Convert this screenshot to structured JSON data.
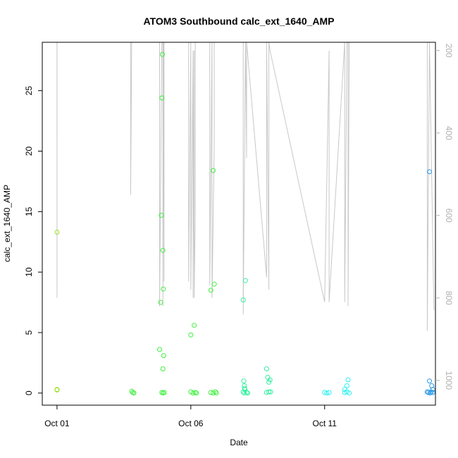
{
  "chart_data": {
    "type": "scatter",
    "title": "ATOM3 Southbound calc_ext_1640_AMP",
    "xlabel": "Date",
    "ylabel": "calc_ext_1640_AMP",
    "x_axis": {
      "type": "date",
      "range": [
        "2014-10-00",
        "2014-10-15"
      ],
      "ticks": [
        {
          "value": "2014-10-01",
          "label": "Oct 01"
        },
        {
          "value": "2014-10-06",
          "label": "Oct 06"
        },
        {
          "value": "2014-10-11",
          "label": "Oct 11"
        }
      ]
    },
    "y_axis": {
      "range": [
        -1,
        29
      ],
      "ticks": [
        0,
        5,
        10,
        15,
        20,
        25
      ]
    },
    "y2_axis": {
      "reversed": true,
      "range": [
        1060,
        180
      ],
      "ticks": [
        200,
        400,
        600,
        800,
        1000
      ],
      "color": "#b0b0b0"
    },
    "points": [
      {
        "x": "2014-10-01T00:00",
        "y": 13.3,
        "color": "#9be22b"
      },
      {
        "x": "2014-10-01T00:00",
        "y": 0.3,
        "color": "#9be22b"
      },
      {
        "x": "2014-10-01T00:02",
        "y": 0.25,
        "color": "#9be22b"
      },
      {
        "x": "2014-10-03T19:00",
        "y": 0.15,
        "color": "#3ff03f"
      },
      {
        "x": "2014-10-03T20:00",
        "y": 0.05,
        "color": "#3ff03f"
      },
      {
        "x": "2014-10-03T21:00",
        "y": 0.0,
        "color": "#3ff03f"
      },
      {
        "x": "2014-10-04T20:00",
        "y": 3.6,
        "color": "#3ff03f"
      },
      {
        "x": "2014-10-04T21:00",
        "y": 7.5,
        "color": "#3ff03f"
      },
      {
        "x": "2014-10-04T21:30",
        "y": 14.7,
        "color": "#3ff03f"
      },
      {
        "x": "2014-10-04T22:00",
        "y": 24.4,
        "color": "#3ff03f"
      },
      {
        "x": "2014-10-04T22:30",
        "y": 28.0,
        "color": "#3ff03f"
      },
      {
        "x": "2014-10-04T23:00",
        "y": 11.8,
        "color": "#3ff03f"
      },
      {
        "x": "2014-10-04T23:20",
        "y": 8.6,
        "color": "#3ff03f"
      },
      {
        "x": "2014-10-04T23:40",
        "y": 3.1,
        "color": "#3ff03f"
      },
      {
        "x": "2014-10-04T23:00",
        "y": 2.0,
        "color": "#3ff03f"
      },
      {
        "x": "2014-10-04T22:00",
        "y": 0.05,
        "color": "#3ff03f"
      },
      {
        "x": "2014-10-04T23:10",
        "y": 0.0,
        "color": "#3ff03f"
      },
      {
        "x": "2014-10-05T00:10",
        "y": 0.05,
        "color": "#3ff03f"
      },
      {
        "x": "2014-10-06T00:00",
        "y": 4.8,
        "color": "#3ff03f"
      },
      {
        "x": "2014-10-06T03:00",
        "y": 5.6,
        "color": "#3ff03f"
      },
      {
        "x": "2014-10-06T00:00",
        "y": 0.1,
        "color": "#3ff03f"
      },
      {
        "x": "2014-10-06T02:00",
        "y": 0.0,
        "color": "#3ff03f"
      },
      {
        "x": "2014-10-06T04:00",
        "y": 0.05,
        "color": "#3ff03f"
      },
      {
        "x": "2014-10-06T05:00",
        "y": 0.0,
        "color": "#3ff03f"
      },
      {
        "x": "2014-10-06T18:00",
        "y": 8.5,
        "color": "#3ff03f"
      },
      {
        "x": "2014-10-06T20:00",
        "y": 18.4,
        "color": "#3ff03f"
      },
      {
        "x": "2014-10-06T21:00",
        "y": 9.0,
        "color": "#3ff03f"
      },
      {
        "x": "2014-10-06T18:00",
        "y": 0.05,
        "color": "#3ff03f"
      },
      {
        "x": "2014-10-06T20:00",
        "y": 0.0,
        "color": "#3ff03f"
      },
      {
        "x": "2014-10-06T22:00",
        "y": 0.1,
        "color": "#3ff03f"
      },
      {
        "x": "2014-10-06T23:00",
        "y": 0.0,
        "color": "#3ff03f"
      },
      {
        "x": "2014-10-07T23:00",
        "y": 7.7,
        "color": "#33efa0"
      },
      {
        "x": "2014-10-08T01:00",
        "y": 9.3,
        "color": "#33efa0"
      },
      {
        "x": "2014-10-07T23:30",
        "y": 1.0,
        "color": "#33efa0"
      },
      {
        "x": "2014-10-08T00:00",
        "y": 0.6,
        "color": "#33efa0"
      },
      {
        "x": "2014-10-08T00:10",
        "y": 0.4,
        "color": "#33efa0"
      },
      {
        "x": "2014-10-08T00:30",
        "y": 0.3,
        "color": "#33efa0"
      },
      {
        "x": "2014-10-07T23:00",
        "y": 0.1,
        "color": "#33efa0"
      },
      {
        "x": "2014-10-08T00:00",
        "y": 0.0,
        "color": "#33efa0"
      },
      {
        "x": "2014-10-08T02:00",
        "y": 0.05,
        "color": "#33efa0"
      },
      {
        "x": "2014-10-08T03:00",
        "y": 0.0,
        "color": "#33efa0"
      },
      {
        "x": "2014-10-08T20:00",
        "y": 2.0,
        "color": "#33efa0"
      },
      {
        "x": "2014-10-08T21:00",
        "y": 1.3,
        "color": "#33efa0"
      },
      {
        "x": "2014-10-08T23:00",
        "y": 1.1,
        "color": "#33efa0"
      },
      {
        "x": "2014-10-08T22:00",
        "y": 0.9,
        "color": "#33efa0"
      },
      {
        "x": "2014-10-08T20:00",
        "y": 0.05,
        "color": "#33efa0"
      },
      {
        "x": "2014-10-08T22:00",
        "y": 0.1,
        "color": "#33efa0"
      },
      {
        "x": "2014-10-08T23:30",
        "y": 0.1,
        "color": "#33efa0"
      },
      {
        "x": "2014-10-11T00:00",
        "y": 0.05,
        "color": "#2ef0f0"
      },
      {
        "x": "2014-10-11T02:00",
        "y": 0.0,
        "color": "#2ef0f0"
      },
      {
        "x": "2014-10-11T04:00",
        "y": 0.05,
        "color": "#2ef0f0"
      },
      {
        "x": "2014-10-11T18:00",
        "y": 0.3,
        "color": "#2ef0f0"
      },
      {
        "x": "2014-10-11T20:00",
        "y": 0.6,
        "color": "#2ef0f0"
      },
      {
        "x": "2014-10-11T21:00",
        "y": 1.1,
        "color": "#2ef0f0"
      },
      {
        "x": "2014-10-11T18:00",
        "y": 0.05,
        "color": "#2ef0f0"
      },
      {
        "x": "2014-10-11T20:00",
        "y": 0.1,
        "color": "#2ef0f0"
      },
      {
        "x": "2014-10-11T22:00",
        "y": 0.0,
        "color": "#2ef0f0"
      },
      {
        "x": "2014-10-14T22:00",
        "y": 18.3,
        "color": "#2596e8"
      },
      {
        "x": "2014-10-14T22:00",
        "y": 1.0,
        "color": "#2596e8"
      },
      {
        "x": "2014-10-15T00:00",
        "y": 0.6,
        "color": "#2596e8"
      },
      {
        "x": "2014-10-15T01:00",
        "y": 0.3,
        "color": "#2596e8"
      },
      {
        "x": "2014-10-14T20:00",
        "y": 0.1,
        "color": "#2596e8"
      },
      {
        "x": "2014-10-14T21:00",
        "y": 0.05,
        "color": "#2596e8"
      },
      {
        "x": "2014-10-14T22:30",
        "y": 0.0,
        "color": "#2596e8"
      },
      {
        "x": "2014-10-14T23:30",
        "y": 0.1,
        "color": "#2596e8"
      },
      {
        "x": "2014-10-15T01:00",
        "y": 0.05,
        "color": "#2596e8"
      }
    ],
    "line": {
      "axis": "y2",
      "color": "#c8c8c8",
      "x": [
        "2014-10-01T00:00",
        "2014-10-01T00:00",
        "2014-10-01T00:05",
        "2014-10-01T01:00",
        "2014-10-03T15:00",
        "2014-10-03T17:00",
        "2014-10-03T18:00",
        "2014-10-03T18:00",
        "2014-10-03T19:00",
        "2014-10-04T19:00",
        "2014-10-04T20:00",
        "2014-10-04T20:00",
        "2014-10-04T22:00",
        "2014-10-04T22:00",
        "2014-10-04T23:00",
        "2014-10-04T23:00",
        "2014-10-04T23:30",
        "2014-10-04T23:30",
        "2014-10-05T00:00",
        "2014-10-05T00:00",
        "2014-10-05T22:00",
        "2014-10-05T22:00",
        "2014-10-06T00:00",
        "2014-10-06T00:00",
        "2014-10-06T02:00",
        "2014-10-06T02:00",
        "2014-10-06T03:00",
        "2014-10-06T03:00",
        "2014-10-06T04:00",
        "2014-10-06T04:00",
        "2014-10-06T17:00",
        "2014-10-06T17:00",
        "2014-10-06T19:00",
        "2014-10-06T19:00",
        "2014-10-06T21:00",
        "2014-10-06T21:00",
        "2014-10-06T22:00",
        "2014-10-07T23:00",
        "2014-10-07T23:00",
        "2014-10-08T01:00",
        "2014-10-08T01:00",
        "2014-10-08T02:00",
        "2014-10-08T02:00",
        "2014-10-08T20:00",
        "2014-10-08T20:00",
        "2014-10-08T22:00",
        "2014-10-08T22:00",
        "2014-10-08T23:00",
        "2014-10-11T00:00",
        "2014-10-11T00:00",
        "2014-10-11T04:00",
        "2014-10-11T04:00",
        "2014-10-11T18:00",
        "2014-10-11T18:00",
        "2014-10-11T20:00",
        "2014-10-11T20:00",
        "2014-10-11T21:00",
        "2014-10-11T21:00",
        "2014-10-11T22:00",
        "2014-10-14T20:00",
        "2014-10-14T20:00",
        "2014-10-14T22:00",
        "2014-10-14T22:00",
        "2014-10-15T02:00"
      ],
      "y": [
        180,
        800,
        180,
        180,
        180,
        180,
        180,
        550,
        180,
        180,
        180,
        820,
        180,
        180,
        180,
        820,
        180,
        180,
        760,
        180,
        180,
        760,
        180,
        780,
        200,
        800,
        200,
        800,
        600,
        180,
        180,
        770,
        180,
        800,
        430,
        180,
        180,
        180,
        840,
        180,
        180,
        460,
        180,
        750,
        180,
        780,
        180,
        200,
        810,
        810,
        200,
        810,
        180,
        810,
        180,
        180,
        180,
        820,
        180,
        180,
        880,
        180,
        180,
        830
      ]
    }
  }
}
